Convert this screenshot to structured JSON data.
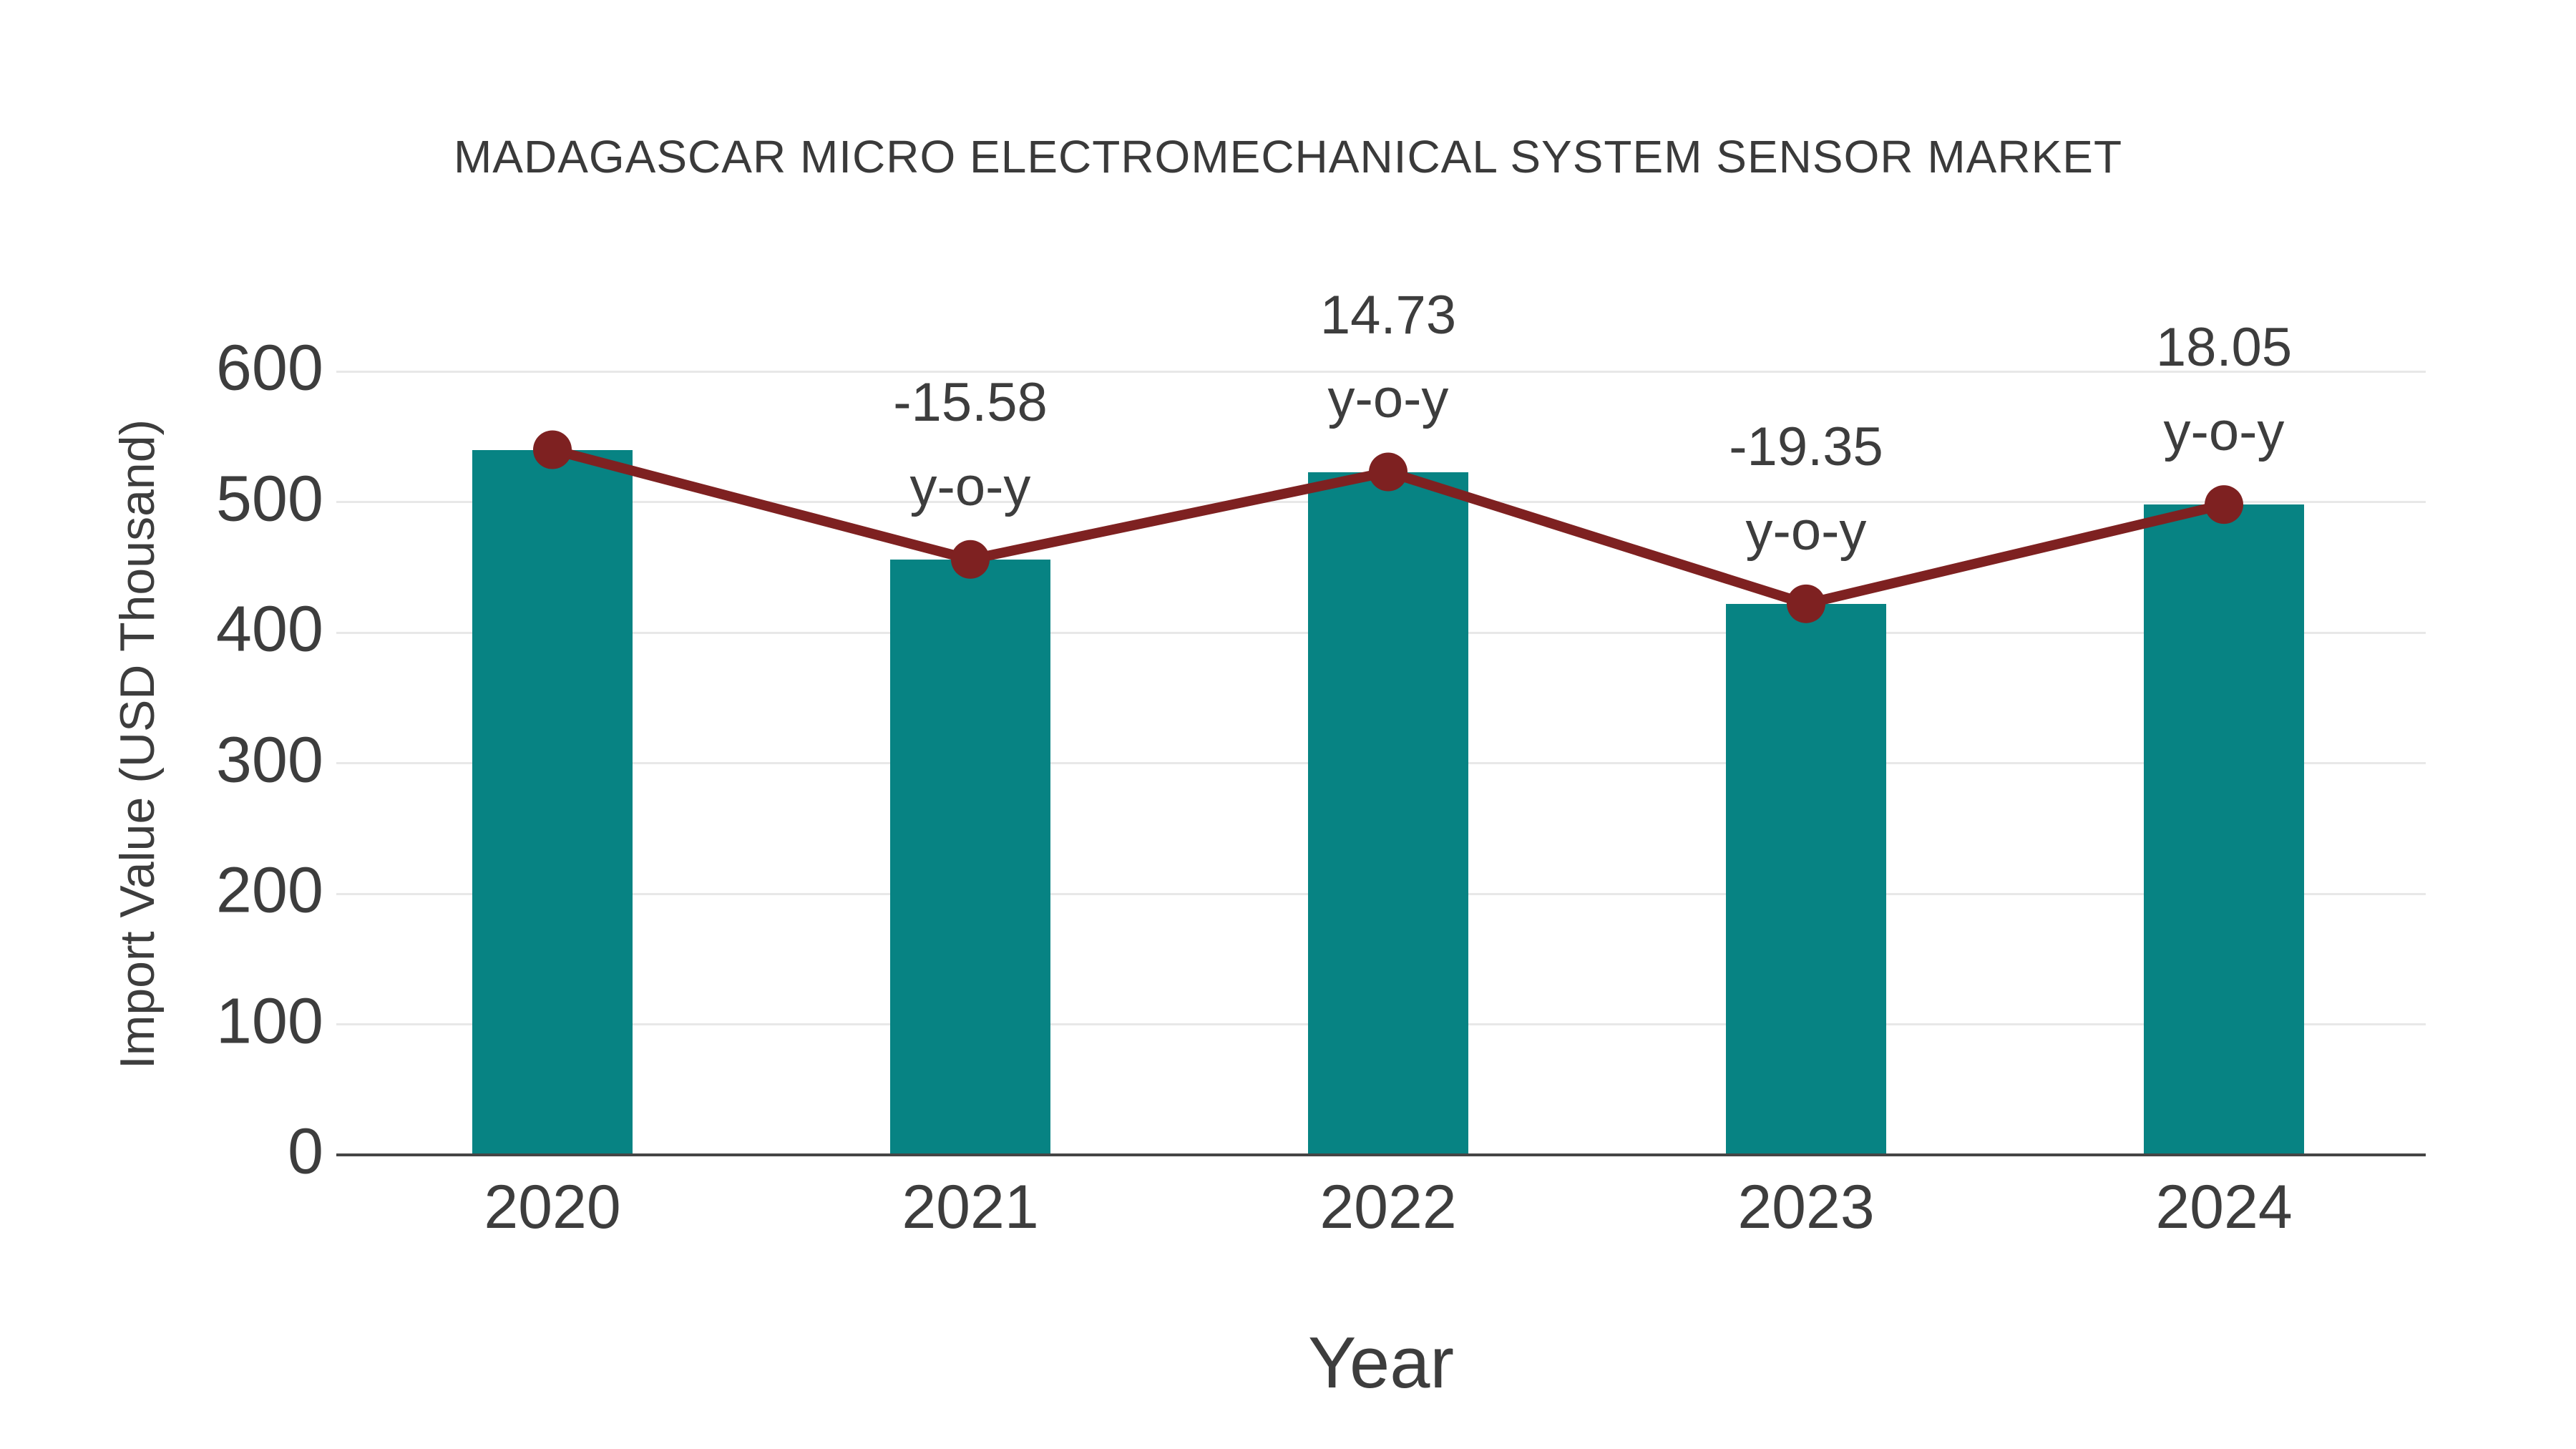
{
  "chart_data": {
    "type": "bar",
    "title": "MADAGASCAR MICRO ELECTROMECHANICAL SYSTEM SENSOR MARKET",
    "xlabel": "Year",
    "ylabel": "Import Value (USD Thousand)",
    "categories": [
      "2020",
      "2021",
      "2022",
      "2023",
      "2024"
    ],
    "series": [
      {
        "name": "Import Value",
        "type": "bar",
        "values": [
          540,
          456,
          523,
          422,
          498
        ]
      },
      {
        "name": "Import Value trend",
        "type": "line",
        "values": [
          540,
          456,
          523,
          422,
          498
        ]
      }
    ],
    "annotations": [
      {
        "category": "2021",
        "value": "-15.58",
        "suffix": "y-o-y"
      },
      {
        "category": "2022",
        "value": "14.73",
        "suffix": "y-o-y"
      },
      {
        "category": "2023",
        "value": "-19.35",
        "suffix": "y-o-y"
      },
      {
        "category": "2024",
        "value": "18.05",
        "suffix": "y-o-y"
      }
    ],
    "yticks": [
      0,
      100,
      200,
      300,
      400,
      500,
      600
    ],
    "ylim": [
      0,
      600
    ],
    "grid": true,
    "legend": "none",
    "colors": {
      "bar": "#078383",
      "line": "#7e2121",
      "marker": "#7e2121",
      "text": "#3d3d3d",
      "gridline": "#e8e8e8",
      "axis_line": "#454545",
      "background": "#ffffff"
    }
  }
}
